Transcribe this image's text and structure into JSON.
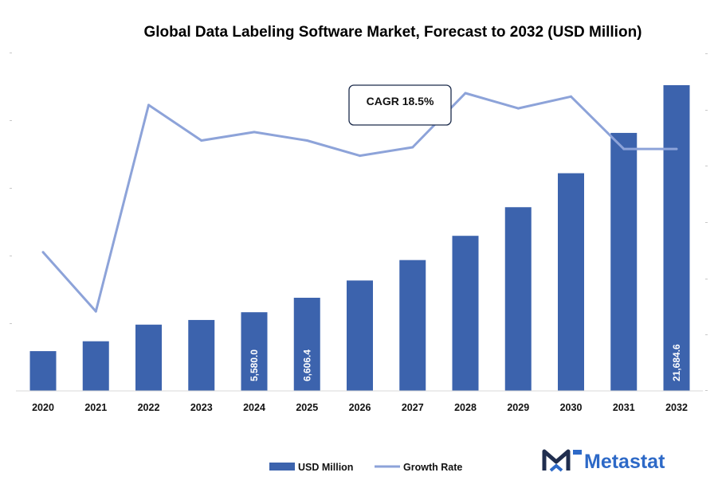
{
  "colors": {
    "bar": "#3c63ad",
    "line": "#8da3d9",
    "logo_dark": "#1f2d4e",
    "logo_accent": "#2d69c7"
  },
  "brand": {
    "name": "Metastat",
    "icon": "metastat-m-logo-icon"
  },
  "chart_data": {
    "type": "bar+line",
    "title": "Global Data Labeling Software Market, Forecast to 2032 (USD Million)",
    "categories": [
      "2020",
      "2021",
      "2022",
      "2023",
      "2024",
      "2025",
      "2026",
      "2027",
      "2028",
      "2029",
      "2030",
      "2031",
      "2032"
    ],
    "series": [
      {
        "name": "USD Million",
        "type": "bar",
        "axis": "left",
        "values": [
          2820,
          3520,
          4700,
          5030,
          5580.0,
          6606.4,
          7830,
          9280,
          11000,
          13030,
          15440,
          18300,
          21684.6
        ],
        "data_labels": [
          "",
          "",
          "",
          "",
          "5,580.0",
          "6,606.4",
          "",
          "",
          "",
          "",
          "",
          "",
          "21,684.6"
        ]
      },
      {
        "name": "Growth Rate",
        "type": "line",
        "axis": "right",
        "values": [
          13.2,
          9.7,
          21.9,
          19.8,
          20.3,
          19.8,
          18.9,
          19.4,
          22.6,
          21.7,
          22.4,
          19.3,
          19.3
        ]
      }
    ],
    "ylim_left": [
      0,
      24000
    ],
    "ylim_right": [
      5,
      25
    ],
    "legend": "bottom-center",
    "grid": false,
    "annotations": [
      {
        "text": "CAGR 18.5%",
        "category": "2027"
      }
    ]
  }
}
